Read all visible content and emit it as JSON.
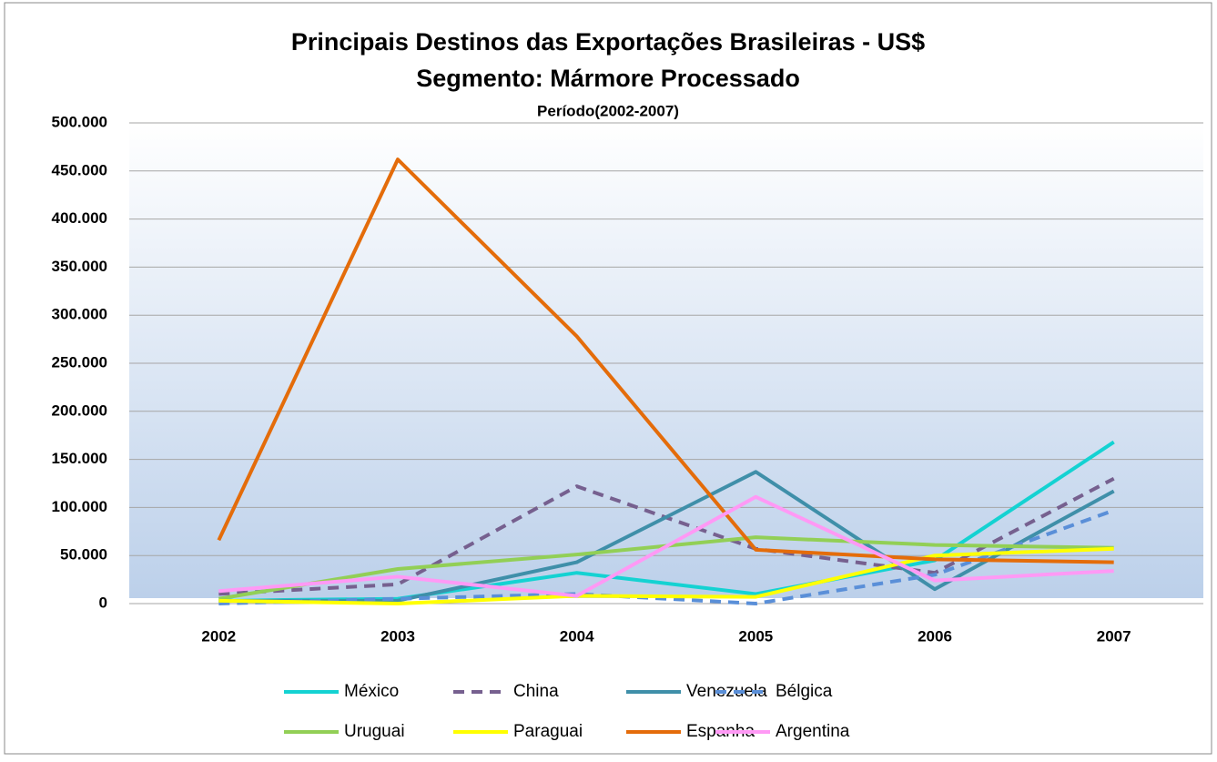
{
  "chart_data": {
    "type": "line",
    "title": "Principais Destinos das Exportações Brasileiras - US$",
    "subtitle": "Segmento: Mármore Processado",
    "period": "Período(2002-2007)",
    "categories": [
      "2002",
      "2003",
      "2004",
      "2005",
      "2006",
      "2007"
    ],
    "series": [
      {
        "name": "México",
        "color": "#14d2d2",
        "dash": false,
        "values": [
          3000,
          5000,
          32000,
          10000,
          45000,
          168000
        ]
      },
      {
        "name": "China",
        "color": "#76608f",
        "dash": true,
        "values": [
          10000,
          20000,
          122000,
          57000,
          32000,
          130000
        ]
      },
      {
        "name": "Venezuela",
        "color": "#3f8fa9",
        "dash": false,
        "values": [
          3000,
          3000,
          43000,
          137000,
          15000,
          117000
        ]
      },
      {
        "name": "Bélgica",
        "color": "#5a8fd8",
        "dash": true,
        "values": [
          0,
          5000,
          10000,
          0,
          30000,
          97000
        ]
      },
      {
        "name": "Uruguai",
        "color": "#92cf56",
        "dash": false,
        "values": [
          5000,
          36000,
          51000,
          69000,
          61000,
          58000
        ]
      },
      {
        "name": "Paraguai",
        "color": "#ffff00",
        "dash": false,
        "values": [
          3000,
          0,
          8000,
          7000,
          50000,
          57000
        ]
      },
      {
        "name": "Espanha",
        "color": "#e46c0a",
        "dash": false,
        "values": [
          66000,
          462000,
          278000,
          56000,
          46000,
          43000
        ]
      },
      {
        "name": "Argentina",
        "color": "#ff99f5",
        "dash": false,
        "values": [
          13000,
          28000,
          8000,
          111000,
          24000,
          34000
        ]
      }
    ],
    "ylim": [
      0,
      500000
    ],
    "yticks": [
      0,
      {
        "value": 50000,
        "label": "50.000"
      },
      {
        "value": 100000,
        "label": "100.000"
      },
      {
        "value": 150000,
        "label": "150.000"
      },
      {
        "value": 200000,
        "label": "200.000"
      },
      {
        "value": 250000,
        "label": "250.000"
      },
      {
        "value": 300000,
        "label": "300.000"
      },
      {
        "value": 350000,
        "label": "350.000"
      },
      {
        "value": 400000,
        "label": "400.000"
      },
      {
        "value": 450000,
        "label": "450.000"
      },
      {
        "value": 500000,
        "label": "500.000"
      }
    ],
    "grid": true,
    "legend": "bottom"
  }
}
